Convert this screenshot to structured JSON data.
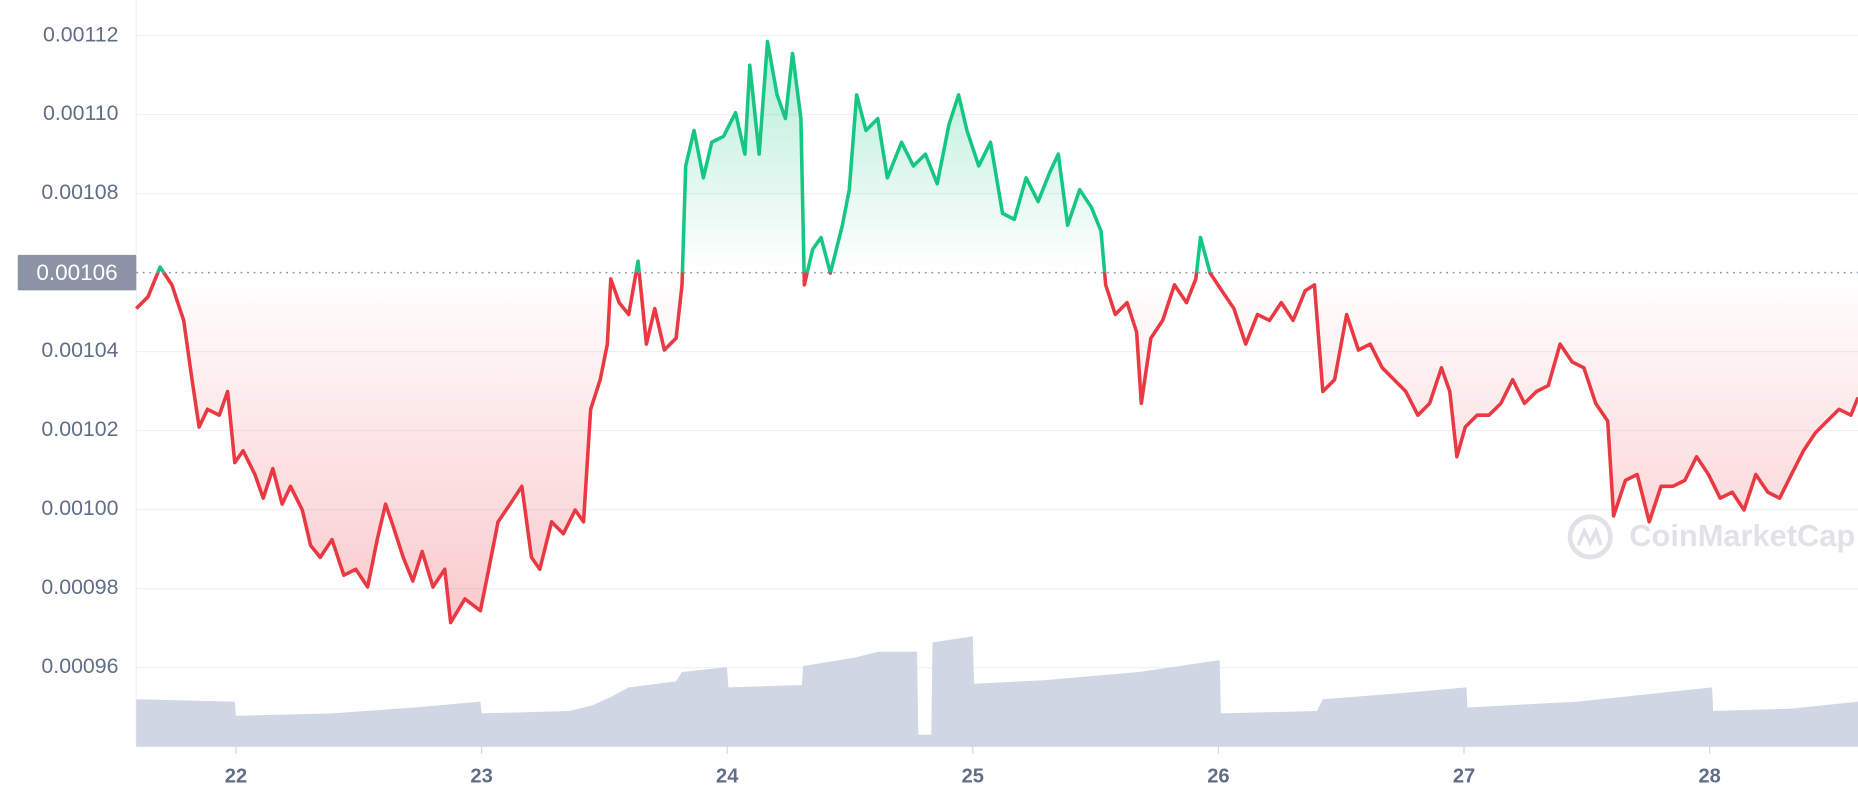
{
  "chart_data": {
    "type": "line",
    "x": [
      21.594,
      21.642,
      21.691,
      21.739,
      21.787,
      21.821,
      21.85,
      21.884,
      21.932,
      21.966,
      21.995,
      22.029,
      22.077,
      22.111,
      22.15,
      22.188,
      22.222,
      22.27,
      22.304,
      22.343,
      22.391,
      22.439,
      22.488,
      22.536,
      22.575,
      22.609,
      22.642,
      22.681,
      22.72,
      22.758,
      22.802,
      22.85,
      22.874,
      22.932,
      22.995,
      23.029,
      23.067,
      23.116,
      23.164,
      23.203,
      23.237,
      23.285,
      23.333,
      23.381,
      23.415,
      23.444,
      23.483,
      23.512,
      23.526,
      23.56,
      23.599,
      23.637,
      23.671,
      23.705,
      23.744,
      23.792,
      23.816,
      23.831,
      23.865,
      23.903,
      23.937,
      23.985,
      24.034,
      24.072,
      24.092,
      24.13,
      24.164,
      24.203,
      24.237,
      24.266,
      24.3,
      24.314,
      24.348,
      24.382,
      24.42,
      24.469,
      24.497,
      24.527,
      24.565,
      24.613,
      24.652,
      24.71,
      24.758,
      24.807,
      24.855,
      24.903,
      24.942,
      24.976,
      25.024,
      25.072,
      25.121,
      25.169,
      25.217,
      25.266,
      25.314,
      25.348,
      25.386,
      25.435,
      25.483,
      25.522,
      25.541,
      25.58,
      25.628,
      25.667,
      25.686,
      25.725,
      25.773,
      25.821,
      25.87,
      25.908,
      25.927,
      25.966,
      26.014,
      26.063,
      26.111,
      26.159,
      26.208,
      26.256,
      26.304,
      26.353,
      26.391,
      26.425,
      26.473,
      26.522,
      26.57,
      26.618,
      26.667,
      26.715,
      26.763,
      26.812,
      26.86,
      26.908,
      26.942,
      26.971,
      27.005,
      27.053,
      27.101,
      27.15,
      27.198,
      27.246,
      27.295,
      27.343,
      27.391,
      27.44,
      27.488,
      27.536,
      27.585,
      27.609,
      27.657,
      27.705,
      27.754,
      27.802,
      27.85,
      27.899,
      27.947,
      27.995,
      28.043,
      28.092,
      28.14,
      28.188,
      28.237,
      28.285,
      28.333,
      28.382,
      28.43,
      28.478,
      28.527,
      28.575,
      28.604
    ],
    "values": [
      0.0010509,
      0.0010539,
      0.0010614,
      0.0010569,
      0.0010479,
      0.0010329,
      0.0010209,
      0.0010254,
      0.0010239,
      0.0010299,
      0.0010119,
      0.0010149,
      0.0010089,
      0.0010029,
      0.0010104,
      0.0010014,
      0.0010059,
      0.0009999,
      0.0009909,
      0.0009879,
      0.0009924,
      0.0009834,
      0.0009849,
      0.0009804,
      0.0009924,
      0.0010014,
      0.0009954,
      0.0009879,
      0.0009819,
      0.0009894,
      0.0009804,
      0.0009849,
      0.0009714,
      0.0009774,
      0.0009744,
      0.0009849,
      0.0009969,
      0.0010014,
      0.0010059,
      0.0009879,
      0.0009849,
      0.0009969,
      0.0009939,
      0.0009999,
      0.0009969,
      0.0010254,
      0.0010329,
      0.0010419,
      0.0010584,
      0.0010524,
      0.0010494,
      0.0010629,
      0.0010419,
      0.0010509,
      0.0010404,
      0.0010434,
      0.0010569,
      0.001087,
      0.001096,
      0.001084,
      0.001093,
      0.0010945,
      0.0011005,
      0.00109,
      0.0011125,
      0.00109,
      0.0011185,
      0.001105,
      0.001099,
      0.0011155,
      0.001099,
      0.0010569,
      0.0010659,
      0.0010689,
      0.0010599,
      0.001072,
      0.001081,
      0.001105,
      0.001096,
      0.001099,
      0.001084,
      0.001093,
      0.001087,
      0.00109,
      0.0010825,
      0.0010975,
      0.001105,
      0.001096,
      0.001087,
      0.001093,
      0.001075,
      0.0010735,
      0.001084,
      0.001078,
      0.0010855,
      0.00109,
      0.001072,
      0.001081,
      0.0010765,
      0.0010705,
      0.0010569,
      0.0010494,
      0.0010524,
      0.0010449,
      0.0010269,
      0.0010434,
      0.0010479,
      0.0010569,
      0.0010524,
      0.0010584,
      0.0010689,
      0.0010599,
      0.0010554,
      0.0010509,
      0.0010419,
      0.0010494,
      0.0010479,
      0.0010524,
      0.0010479,
      0.0010554,
      0.0010569,
      0.0010299,
      0.0010329,
      0.0010494,
      0.0010404,
      0.0010419,
      0.0010359,
      0.0010329,
      0.0010299,
      0.0010239,
      0.0010269,
      0.0010359,
      0.0010299,
      0.0010134,
      0.0010209,
      0.0010239,
      0.0010239,
      0.0010269,
      0.0010329,
      0.0010269,
      0.0010299,
      0.0010314,
      0.0010419,
      0.0010374,
      0.0010359,
      0.0010269,
      0.0010224,
      0.0009984,
      0.0010074,
      0.0010089,
      0.0009969,
      0.0010059,
      0.0010059,
      0.0010074,
      0.0010134,
      0.0010089,
      0.0010029,
      0.0010044,
      0.0009999,
      0.0010089,
      0.0010044,
      0.0010029,
      0.0010089,
      0.0010149,
      0.0010194,
      0.0010224,
      0.0010254,
      0.0010239,
      0.0010284
    ],
    "colors": {
      "up": "#16c784",
      "down": "#ea3943"
    },
    "baseline": 0.00106,
    "xlim": [
      21.594,
      28.604
    ],
    "xticks": [
      22,
      23,
      24,
      25,
      26,
      27,
      28
    ],
    "ylim": [
      0.00094,
      0.001129
    ],
    "yticks": [
      0.00096,
      0.00098,
      {
        "value": 0.001,
        "label": "0.00100"
      },
      0.00102,
      0.00104,
      0.00108,
      {
        "value": 0.0011,
        "label": "0.00110"
      },
      0.00112
    ],
    "grid": true,
    "volume": {
      "color": "#cfd6e4",
      "ylim": [
        0,
        630
      ],
      "x": [
        21.594,
        21.995,
        22.0,
        22.391,
        22.729,
        22.995,
        23.0,
        23.357,
        23.454,
        23.527,
        23.599,
        23.792,
        23.816,
        23.999,
        24.005,
        24.304,
        24.309,
        24.517,
        24.614,
        24.773,
        24.778,
        24.831,
        24.836,
        25.0,
        25.005,
        25.29,
        25.676,
        26.005,
        26.01,
        26.401,
        26.425,
        26.739,
        27.01,
        27.014,
        27.464,
        28.01,
        28.014,
        28.333,
        28.604
      ],
      "values": [
        40,
        38,
        26,
        28,
        33,
        38,
        28,
        30,
        35,
        42,
        50,
        55,
        63,
        67,
        50,
        52,
        68,
        75,
        80,
        80,
        10,
        10,
        88,
        93,
        53,
        56,
        63,
        73,
        28,
        30,
        40,
        45,
        50,
        33,
        38,
        50,
        30,
        32,
        38
      ]
    },
    "watermark": "CoinMarketCap"
  }
}
